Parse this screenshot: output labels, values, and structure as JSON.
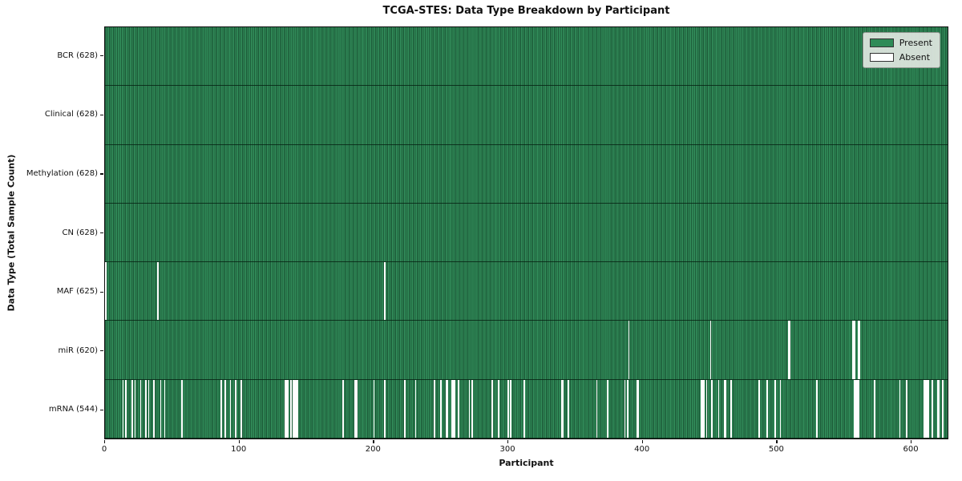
{
  "chart_data": {
    "type": "heatmap",
    "title": "TCGA-STES: Data Type Breakdown by Participant",
    "xlabel": "Participant",
    "ylabel": "Data Type (Total Sample Count)",
    "n_participants": 628,
    "x_ticks": [
      0,
      100,
      200,
      300,
      400,
      500,
      600
    ],
    "legend_position": "upper right",
    "grid": false,
    "colors": {
      "present": "#2e8b57",
      "present_edge": "#1d5c39",
      "absent": "#ffffff",
      "spine": "#111111",
      "legend_bg": "#e4e9e4"
    },
    "legend": [
      {
        "label": "Present",
        "color": "#2e8b57"
      },
      {
        "label": "Absent",
        "color": "#ffffff"
      }
    ],
    "rows": [
      {
        "key": "bcr",
        "label": "BCR (628)",
        "present_count": 628,
        "absent": []
      },
      {
        "key": "clinical",
        "label": "Clinical (628)",
        "present_count": 628,
        "absent": []
      },
      {
        "key": "methylation",
        "label": "Methylation (628)",
        "present_count": 628,
        "absent": []
      },
      {
        "key": "cn",
        "label": "CN (628)",
        "present_count": 628,
        "absent": []
      },
      {
        "key": "maf",
        "label": "MAF (625)",
        "present_count": 625,
        "absent": [
          0,
          39,
          208
        ]
      },
      {
        "key": "mir",
        "label": "miR (620)",
        "present_count": 620,
        "absent": [
          390,
          451,
          509,
          510,
          557,
          558,
          561,
          562
        ]
      },
      {
        "key": "mrna",
        "label": "mRNA (544)",
        "present_count": 544,
        "absent": [
          13,
          15,
          20,
          22,
          26,
          30,
          32,
          36,
          41,
          44,
          57,
          86,
          89,
          93,
          97,
          101,
          134,
          135,
          136,
          138,
          140,
          141,
          142,
          143,
          177,
          186,
          187,
          200,
          208,
          223,
          231,
          245,
          250,
          254,
          255,
          258,
          259,
          260,
          263,
          271,
          273,
          288,
          293,
          300,
          302,
          312,
          340,
          341,
          345,
          366,
          374,
          387,
          389,
          396,
          397,
          444,
          445,
          446,
          448,
          452,
          457,
          461,
          462,
          466,
          487,
          493,
          499,
          503,
          530,
          558,
          559,
          560,
          561,
          573,
          592,
          597,
          610,
          611,
          612,
          613,
          616,
          620,
          621,
          624
        ]
      }
    ]
  }
}
